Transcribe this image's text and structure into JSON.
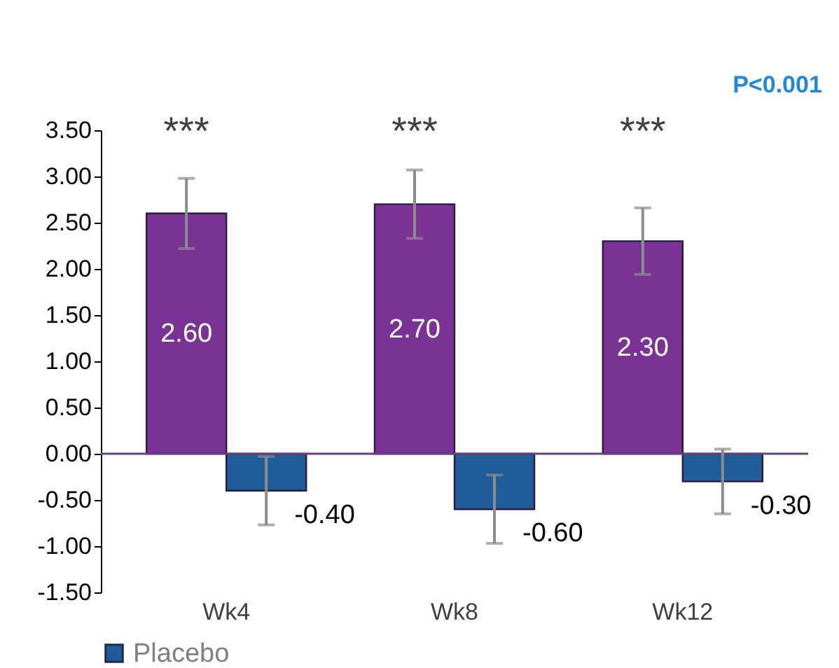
{
  "chart_data": {
    "type": "bar",
    "categories": [
      "Wk4",
      "Wk8",
      "Wk12"
    ],
    "series": [
      {
        "color": "#7a3294",
        "values": [
          2.6,
          2.7,
          2.3
        ],
        "errors": [
          0.38,
          0.37,
          0.36
        ],
        "value_labels": [
          "2.60",
          "2.70",
          "2.30"
        ]
      },
      {
        "name": "Placebo",
        "color": "#1f5c99",
        "values": [
          -0.4,
          -0.6,
          -0.3
        ],
        "errors": [
          0.37,
          0.37,
          0.35
        ],
        "value_labels": [
          "-0.40",
          "-0.60",
          "-0.30"
        ]
      }
    ],
    "ylim": [
      -1.5,
      3.5
    ],
    "yticks": [
      {
        "value": -1.5,
        "label": "-1.50"
      },
      {
        "value": -1.0,
        "label": "-1.00"
      },
      {
        "value": -0.5,
        "label": "-0.50"
      },
      {
        "value": 0.0,
        "label": "0.00"
      },
      {
        "value": 0.5,
        "label": "0.50"
      },
      {
        "value": 1.0,
        "label": "1.00"
      },
      {
        "value": 1.5,
        "label": "1.50"
      },
      {
        "value": 2.0,
        "label": "2.00"
      },
      {
        "value": 2.5,
        "label": "2.50"
      },
      {
        "value": 3.0,
        "label": "3.00"
      },
      {
        "value": 3.5,
        "label": "3.50"
      }
    ],
    "ref_lines": [
      {
        "axis": "y",
        "value": 0,
        "color": "#6b3f80"
      }
    ],
    "annotations": [
      "***",
      "***",
      "***",
      "P<0.001"
    ],
    "legend": "bottom",
    "grid": false
  }
}
